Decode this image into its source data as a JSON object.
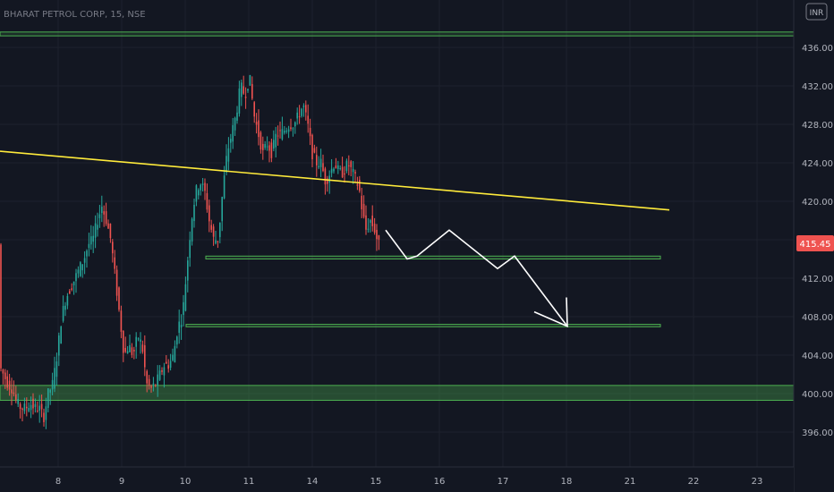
{
  "header": {
    "symbol_title": "BHARAT PETROL CORP, 15, NSE",
    "currency_label": "INR"
  },
  "colors": {
    "background": "#131722",
    "candle_up": "#26a69a",
    "candle_down": "#ef5350",
    "trendline": "#ffeb3b",
    "zone": "#4caf50",
    "projection": "#ffffff",
    "price_badge": "#ef5350"
  },
  "chart_data": {
    "type": "candlestick",
    "title": "BHARAT PETROL CORP, 15, NSE",
    "currency": "INR",
    "ylim": [
      392.5,
      438.5
    ],
    "y_ticks": [
      {
        "value": 436,
        "label": "436.00"
      },
      {
        "value": 432,
        "label": "432.00"
      },
      {
        "value": 428,
        "label": "428.00"
      },
      {
        "value": 424,
        "label": "424.00"
      },
      {
        "value": 420,
        "label": "420.00"
      },
      {
        "value": 416,
        "label": "416.00"
      },
      {
        "value": 412,
        "label": "412.00"
      },
      {
        "value": 408,
        "label": "408.00"
      },
      {
        "value": 404,
        "label": "404.00"
      },
      {
        "value": 400,
        "label": "400.00"
      },
      {
        "value": 396,
        "label": "396.00"
      }
    ],
    "x_ticks": [
      {
        "value": 8,
        "label": "8"
      },
      {
        "value": 9,
        "label": "9"
      },
      {
        "value": 10,
        "label": "10"
      },
      {
        "value": 11,
        "label": "11"
      },
      {
        "value": 14,
        "label": "14"
      },
      {
        "value": 15,
        "label": "15"
      },
      {
        "value": 16,
        "label": "16"
      },
      {
        "value": 17,
        "label": "17"
      },
      {
        "value": 18,
        "label": "18"
      },
      {
        "value": 21,
        "label": "21"
      },
      {
        "value": 22,
        "label": "22"
      },
      {
        "value": 23,
        "label": "23"
      }
    ],
    "last_price": {
      "value": 415.45,
      "label": "415.45"
    },
    "price_path": [
      [
        0,
        403
      ],
      [
        5,
        402
      ],
      [
        10,
        401
      ],
      [
        15,
        400.5
      ],
      [
        20,
        399
      ],
      [
        25,
        398.5
      ],
      [
        30,
        398.5
      ],
      [
        35,
        399
      ],
      [
        40,
        398.5
      ],
      [
        45,
        398.5
      ],
      [
        50,
        397.5
      ],
      [
        55,
        400
      ],
      [
        60,
        401
      ],
      [
        65,
        404
      ],
      [
        70,
        408
      ],
      [
        75,
        410
      ],
      [
        80,
        411
      ],
      [
        85,
        412
      ],
      [
        90,
        413
      ],
      [
        95,
        414
      ],
      [
        100,
        415.5
      ],
      [
        105,
        416
      ],
      [
        110,
        418
      ],
      [
        115,
        419.5
      ],
      [
        120,
        418
      ],
      [
        125,
        416
      ],
      [
        130,
        412
      ],
      [
        135,
        408
      ],
      [
        140,
        404
      ],
      [
        145,
        405
      ],
      [
        150,
        404
      ],
      [
        155,
        406
      ],
      [
        160,
        405
      ],
      [
        165,
        401
      ],
      [
        170,
        400.5
      ],
      [
        175,
        401
      ],
      [
        180,
        402
      ],
      [
        185,
        403
      ],
      [
        190,
        403
      ],
      [
        195,
        404
      ],
      [
        200,
        407
      ],
      [
        205,
        408
      ],
      [
        210,
        413
      ],
      [
        215,
        418
      ],
      [
        220,
        421
      ],
      [
        225,
        422
      ],
      [
        230,
        421
      ],
      [
        235,
        418
      ],
      [
        240,
        416
      ],
      [
        245,
        416
      ],
      [
        250,
        421
      ],
      [
        255,
        425
      ],
      [
        260,
        427
      ],
      [
        265,
        429
      ],
      [
        270,
        432
      ],
      [
        275,
        431
      ],
      [
        280,
        433
      ],
      [
        285,
        429
      ],
      [
        290,
        427
      ],
      [
        295,
        425
      ],
      [
        300,
        426
      ],
      [
        305,
        425
      ],
      [
        310,
        427
      ],
      [
        315,
        427
      ],
      [
        320,
        427.5
      ],
      [
        325,
        428
      ],
      [
        330,
        428
      ],
      [
        335,
        429
      ],
      [
        340,
        430
      ],
      [
        345,
        428
      ],
      [
        350,
        425
      ],
      [
        355,
        424
      ],
      [
        360,
        424
      ],
      [
        365,
        422
      ],
      [
        370,
        423
      ],
      [
        375,
        424
      ],
      [
        380,
        423
      ],
      [
        385,
        423
      ],
      [
        390,
        424
      ],
      [
        395,
        423
      ],
      [
        400,
        422
      ],
      [
        403,
        421
      ],
      [
        406,
        419
      ],
      [
        410,
        417
      ],
      [
        415,
        418
      ],
      [
        420,
        417
      ],
      [
        424,
        415.5
      ]
    ],
    "trendline": {
      "start": [
        0,
        425.2
      ],
      "end": [
        748,
        419.1
      ]
    },
    "zones": [
      {
        "name": "top-line",
        "x0": 0,
        "x1": 887,
        "y0": 437.6,
        "y1": 437.2
      },
      {
        "name": "support-1",
        "x0": 230,
        "x1": 738,
        "y0": 414.3,
        "y1": 414.0
      },
      {
        "name": "support-2",
        "x0": 208,
        "x1": 738,
        "y0": 407.2,
        "y1": 406.95
      },
      {
        "name": "demand-zone",
        "x0": 0,
        "x1": 887,
        "y0": 400.85,
        "y1": 399.3
      }
    ],
    "projection": [
      [
        431,
        417
      ],
      [
        455,
        414
      ],
      [
        466,
        414.3
      ],
      [
        502,
        417
      ],
      [
        556,
        413
      ],
      [
        575,
        414.3
      ],
      [
        634,
        407
      ]
    ],
    "arrowhead": [
      [
        597,
        408.5
      ],
      [
        634,
        407
      ],
      [
        633,
        410
      ]
    ]
  }
}
